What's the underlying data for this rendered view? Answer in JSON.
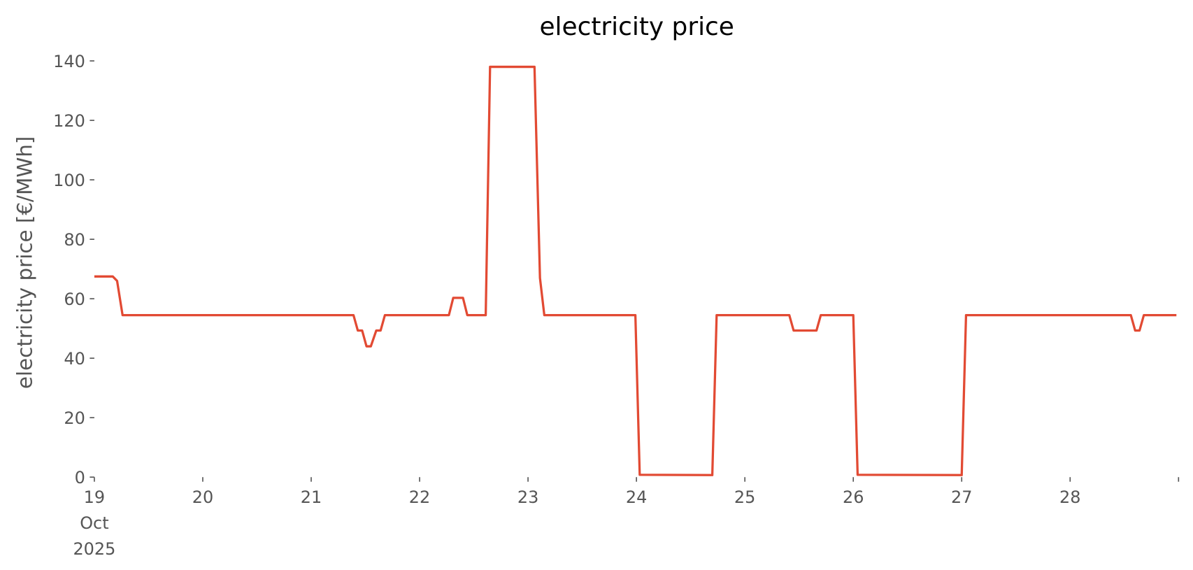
{
  "chart_data": {
    "type": "line",
    "title": "electricity price",
    "y_label": "electricity price [€/MWh]",
    "xlim": [
      19,
      29
    ],
    "ylim": [
      0,
      140
    ],
    "xticks": [
      {
        "value": 19,
        "label": "19\nOct\n2025"
      },
      20,
      21,
      22,
      23,
      24,
      25,
      26,
      27,
      28,
      {
        "value": 29,
        "label": null
      }
    ],
    "yticks": [
      0,
      20,
      40,
      60,
      80,
      100,
      120,
      140
    ],
    "grid": false,
    "series": [
      {
        "name": "electricity price",
        "color": "#e24a33",
        "x": [
          19.0,
          19.17,
          19.21,
          19.26,
          21.39,
          21.43,
          21.47,
          21.51,
          21.55,
          21.6,
          21.64,
          21.68,
          22.27,
          22.31,
          22.4,
          22.44,
          22.61,
          22.65,
          23.06,
          23.11,
          23.15,
          23.99,
          24.03,
          24.7,
          24.74,
          25.41,
          25.45,
          25.66,
          25.7,
          26.0,
          26.04,
          27.0,
          27.04,
          28.56,
          28.6,
          28.64,
          28.68,
          28.98
        ],
        "values": [
          67.5,
          67.5,
          66,
          54.5,
          54.5,
          49.3,
          49.3,
          44,
          44,
          49.3,
          49.3,
          54.5,
          54.5,
          60.3,
          60.3,
          54.5,
          54.5,
          138,
          138,
          67,
          54.5,
          54.5,
          0.8,
          0.7,
          54.5,
          54.5,
          49.3,
          49.3,
          54.5,
          54.5,
          0.8,
          0.7,
          54.5,
          54.5,
          49.3,
          49.3,
          54.5,
          54.5
        ]
      }
    ]
  }
}
